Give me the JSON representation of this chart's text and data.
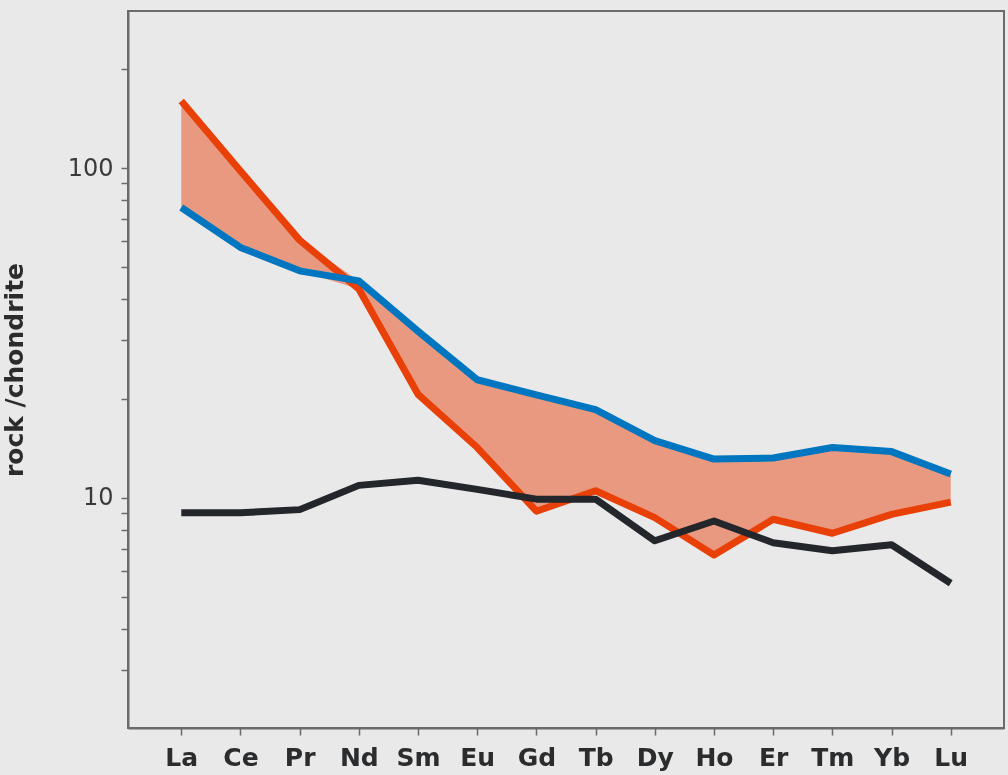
{
  "chart_data": {
    "type": "line",
    "ylabel": "rock /chondrite",
    "categories": [
      "La",
      "Ce",
      "Pr",
      "Nd",
      "Sm",
      "Eu",
      "Gd",
      "Tb",
      "Dy",
      "Ho",
      "Er",
      "Tm",
      "Yb",
      "Lu"
    ],
    "series": [
      {
        "color": "#e94008",
        "values": [
          160,
          98,
          60.5,
          43,
          20.6,
          14.2,
          9.1,
          10.5,
          8.7,
          6.7,
          8.6,
          7.8,
          8.9,
          9.7
        ],
        "lower": [
          76,
          57.5,
          48.8,
          43,
          20.6,
          14.2,
          9.1,
          10.5,
          8.7,
          6.7,
          8.6,
          7.8,
          8.9,
          9.7
        ],
        "upper": [
          160,
          98,
          60.5,
          45.5,
          32,
          22.8,
          20.5,
          18.5,
          14.9,
          13.1,
          13.2,
          14.2,
          13.8,
          11.8
        ]
      },
      {
        "color": "#0076c0",
        "values": [
          76,
          57.5,
          48.8,
          45.5,
          32,
          22.8,
          20.5,
          18.5,
          14.9,
          13.1,
          13.2,
          14.2,
          13.8,
          11.8
        ]
      },
      {
        "color": "#23262a",
        "values": [
          9.0,
          9.0,
          9.2,
          10.9,
          11.3,
          10.6,
          9.9,
          9.9,
          7.4,
          8.5,
          7.3,
          6.9,
          7.2,
          5.5
        ]
      }
    ],
    "log": true,
    "ylim": [
      2,
      300
    ],
    "yticks": [
      {
        "value": 3,
        "label": null
      },
      {
        "value": 4,
        "label": null
      },
      {
        "value": 5,
        "label": null
      },
      {
        "value": 6,
        "label": null
      },
      {
        "value": 7,
        "label": null
      },
      {
        "value": 8,
        "label": null
      },
      {
        "value": 9,
        "label": null
      },
      10,
      {
        "value": 20,
        "label": null
      },
      {
        "value": 30,
        "label": null
      },
      {
        "value": 40,
        "label": null
      },
      {
        "value": 50,
        "label": null
      },
      {
        "value": 60,
        "label": null
      },
      {
        "value": 70,
        "label": null
      },
      {
        "value": 80,
        "label": null
      },
      {
        "value": 90,
        "label": null
      },
      100,
      {
        "value": 200,
        "label": null
      }
    ],
    "grid": false
  }
}
